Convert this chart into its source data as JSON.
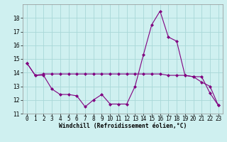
{
  "hours": [
    0,
    1,
    2,
    3,
    4,
    5,
    6,
    7,
    8,
    9,
    10,
    11,
    12,
    13,
    14,
    15,
    16,
    17,
    18,
    19,
    20,
    21,
    22,
    23
  ],
  "line1_temp": [
    14.7,
    13.8,
    13.8,
    12.8,
    12.4,
    12.4,
    12.3,
    11.5,
    12.0,
    12.4,
    11.7,
    11.7,
    11.7,
    13.0,
    15.3,
    17.5,
    18.5,
    16.6,
    16.3,
    13.8,
    13.7,
    13.3,
    13.0,
    11.6
  ],
  "line2_temp": [
    14.7,
    13.8,
    13.9,
    13.9,
    13.9,
    13.9,
    13.9,
    13.9,
    13.9,
    13.9,
    13.9,
    13.9,
    13.9,
    13.9,
    13.9,
    13.9,
    13.9,
    13.8,
    13.8,
    13.8,
    13.7,
    13.7,
    12.5,
    11.6
  ],
  "line_color": "#800080",
  "bg_color": "#cff0f0",
  "grid_color": "#a8d8d8",
  "ylim": [
    11,
    19
  ],
  "yticks": [
    11,
    12,
    13,
    14,
    15,
    16,
    17,
    18
  ],
  "xlabel": "Windchill (Refroidissement éolien,°C)",
  "marker": "D",
  "markersize": 2.0,
  "linewidth": 0.8,
  "tick_fontsize": 5.5,
  "xlabel_fontsize": 5.8
}
